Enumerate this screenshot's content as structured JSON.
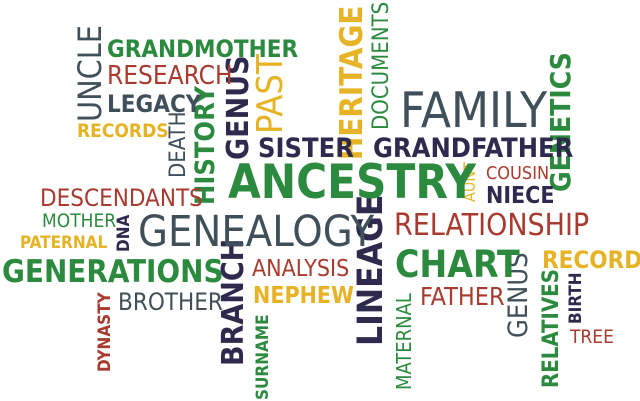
{
  "words": {
    "uncle": "UNCLE",
    "grandmother": "GRANDMOTHER",
    "research": "RESEARCH",
    "legacy": "LEGACY",
    "records_top": "RECORDS",
    "death": "DEATH",
    "history": "HISTORY",
    "genus_top": "GENUS",
    "past": "PAST",
    "heritage": "HERITAGE",
    "documents": "DOCUMENTS",
    "family": "FAMILY",
    "genetics": "GENETICS",
    "sister": "SISTER",
    "grandfather": "GRANDFATHER",
    "descendants": "DESCENDANTS",
    "ancestry": "ANCESTRY",
    "aunt": "AUNT",
    "cousin": "COUSIN",
    "niece": "NIECE",
    "mother": "MOTHER",
    "genealogy": "GENEALOGY",
    "relationship": "RELATIONSHIP",
    "paternal": "PATERNAL",
    "dna": "DNA",
    "generations": "GENERATIONS",
    "lineage": "LINEAGE",
    "chart": "CHART",
    "genus_bottom": "GENUS",
    "records_right": "RECORDS",
    "branch": "BRANCH",
    "analysis": "ANALYSIS",
    "brother": "BROTHER",
    "nephew": "NEPHEW",
    "father": "FATHER",
    "relatives": "RELATIVES",
    "birth": "BIRTH",
    "dynasty": "DYNASTY",
    "surname": "SURNAME",
    "maternal": "MATERNAL",
    "tree": "TREE"
  },
  "colors": {
    "green": "#2b8a3e",
    "red": "#a83a2e",
    "navy": "#2e2a4d",
    "gold": "#e6b325",
    "gray": "#40505a"
  }
}
